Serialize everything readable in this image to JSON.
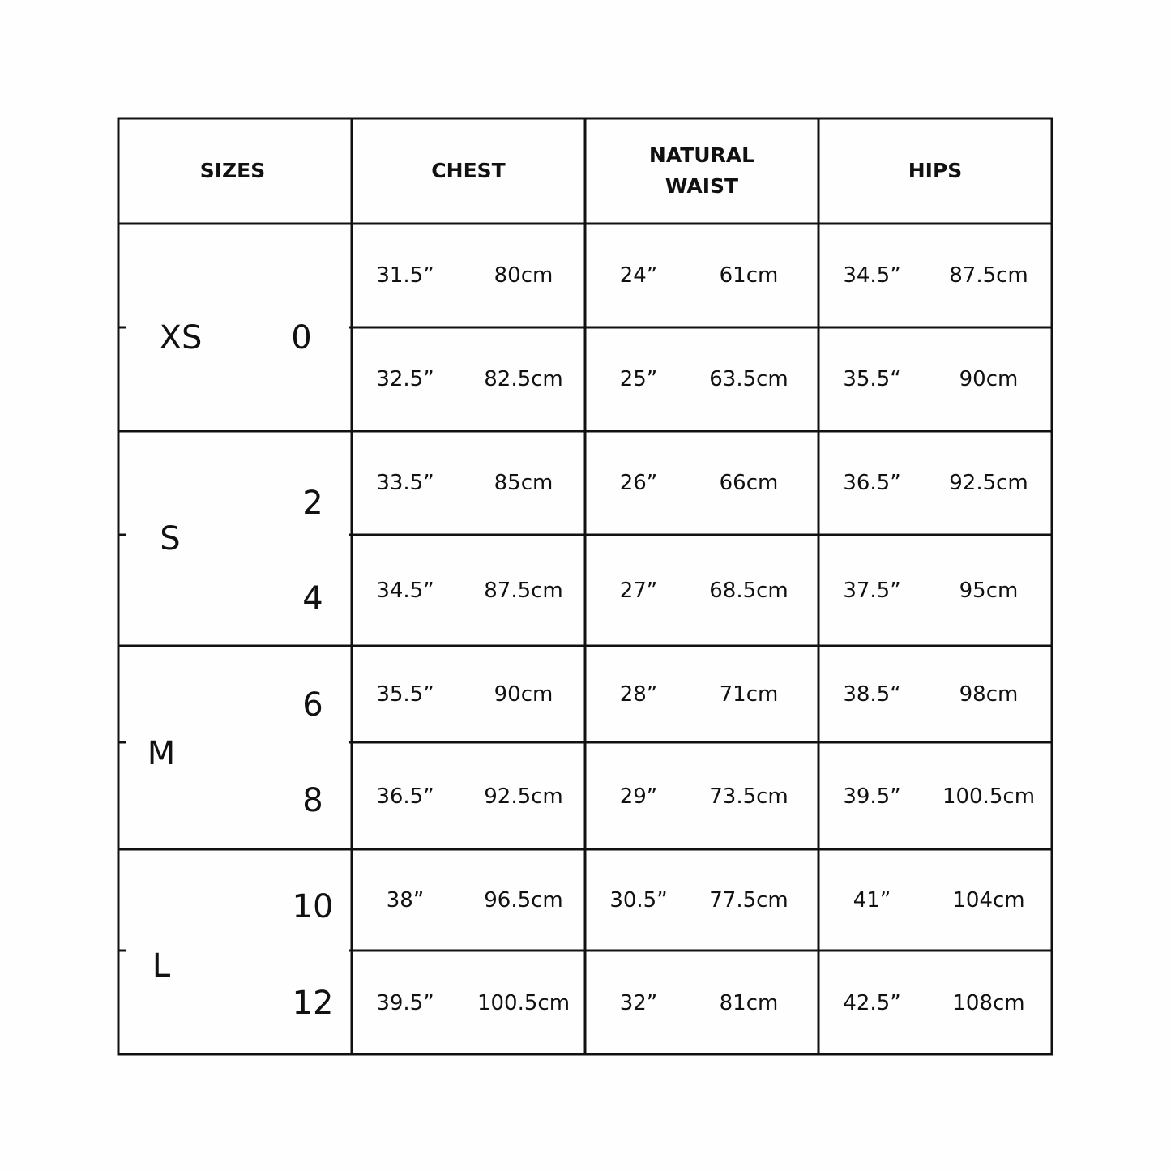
{
  "header": {
    "columns": [
      "SIZES",
      "CHEST",
      "NATURAL WAIST",
      "HIPS"
    ]
  },
  "table": {
    "groups": [
      {
        "letter": "XS",
        "numbers": [
          "0"
        ],
        "rows": [
          [
            "31.5”",
            "80cm",
            "24”",
            "61cm",
            "34.5”",
            "87.5cm"
          ],
          [
            "32.5”",
            "82.5cm",
            "25”",
            "63.5cm",
            "35.5“",
            "90cm"
          ]
        ]
      },
      {
        "letter": "S",
        "numbers": [
          "2",
          "4"
        ],
        "rows": [
          [
            "33.5”",
            "85cm",
            "26”",
            "66cm",
            "36.5”",
            "92.5cm"
          ],
          [
            "34.5”",
            "87.5cm",
            "27”",
            "68.5cm",
            "37.5”",
            "95cm"
          ]
        ]
      },
      {
        "letter": "M",
        "numbers": [
          "6",
          "8"
        ],
        "rows": [
          [
            "35.5”",
            "90cm",
            "28”",
            "71cm",
            "38.5“",
            "98cm"
          ],
          [
            "36.5”",
            "92.5cm",
            "29”",
            "73.5cm",
            "39.5”",
            "100.5cm"
          ]
        ]
      },
      {
        "letter": "L",
        "numbers": [
          "10",
          "12"
        ],
        "rows": [
          [
            "38”",
            "96.5cm",
            "30.5”",
            "77.5cm",
            "41”",
            "104cm"
          ],
          [
            "39.5”",
            "100.5cm",
            "32”",
            "81cm",
            "42.5”",
            "108cm"
          ]
        ]
      }
    ]
  }
}
